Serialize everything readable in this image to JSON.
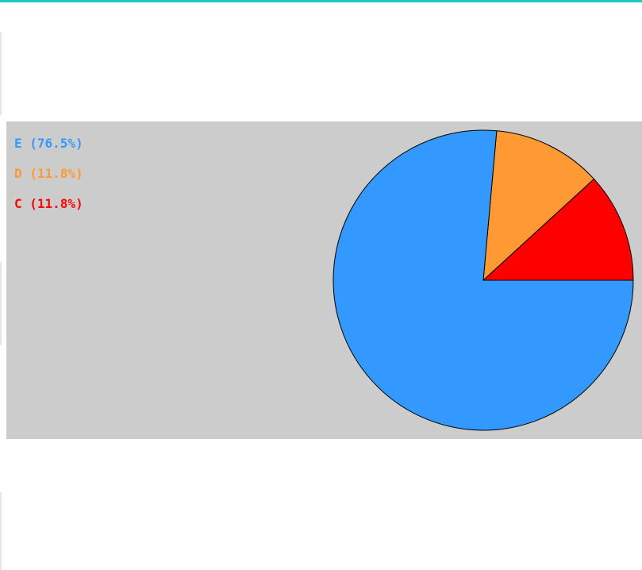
{
  "chart_data": {
    "type": "pie",
    "slices": [
      {
        "label": "E",
        "value": 76.5,
        "legend_text": "E (76.5%)",
        "color": "#3399ff"
      },
      {
        "label": "D",
        "value": 11.8,
        "legend_text": "D (11.8%)",
        "color": "#ff9933"
      },
      {
        "label": "C",
        "value": 11.8,
        "legend_text": "C (11.8%)",
        "color": "#ff0000"
      }
    ],
    "legend_placement": "top-left",
    "background_color": "#cccccc",
    "outline_color": "#000000"
  },
  "colors": {
    "top_rule": "#1fc8c8"
  }
}
